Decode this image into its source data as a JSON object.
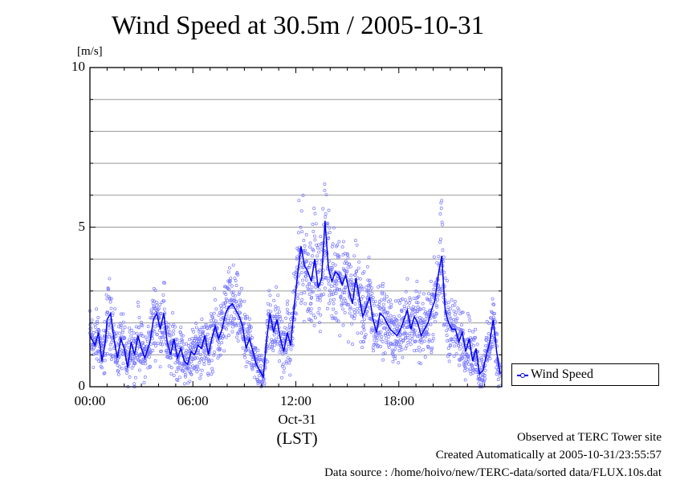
{
  "chart_data": {
    "type": "line",
    "title": "Wind Speed at 30.5m / 2005-10-31",
    "ylabel": "[m/s]",
    "xlabel": "(LST)",
    "date_label": "Oct-31",
    "x_unit": "hour",
    "xlim": [
      0,
      24
    ],
    "ylim": [
      0,
      10
    ],
    "yticks": [
      0,
      5,
      10
    ],
    "ygrid_step": 1,
    "xticks": [
      {
        "value": 0,
        "label": "00:00"
      },
      {
        "value": 6,
        "label": "06:00"
      },
      {
        "value": 12,
        "label": "12:00"
      },
      {
        "value": 18,
        "label": "18:00"
      }
    ],
    "legend": "Wind Speed",
    "legend_position": "right",
    "series": [
      {
        "name": "Wind Speed",
        "color": "#0000ee",
        "x": [
          0.0,
          0.3,
          0.5,
          0.7,
          0.9,
          1.0,
          1.2,
          1.4,
          1.6,
          1.8,
          2.0,
          2.2,
          2.4,
          2.6,
          2.8,
          3.0,
          3.2,
          3.5,
          3.7,
          3.9,
          4.1,
          4.3,
          4.5,
          4.7,
          4.9,
          5.1,
          5.3,
          5.5,
          5.7,
          5.9,
          6.1,
          6.3,
          6.5,
          6.7,
          6.9,
          7.1,
          7.3,
          7.5,
          7.7,
          7.9,
          8.1,
          8.3,
          8.5,
          8.7,
          8.9,
          9.1,
          9.3,
          9.5,
          9.7,
          9.9,
          10.1,
          10.3,
          10.5,
          10.7,
          10.9,
          11.1,
          11.3,
          11.5,
          11.7,
          11.9,
          12.1,
          12.3,
          12.5,
          12.7,
          12.9,
          13.1,
          13.3,
          13.5,
          13.7,
          13.9,
          14.1,
          14.3,
          14.5,
          14.7,
          14.9,
          15.1,
          15.3,
          15.5,
          15.7,
          15.9,
          16.1,
          16.3,
          16.5,
          16.7,
          16.9,
          17.1,
          17.3,
          17.5,
          17.7,
          17.9,
          18.1,
          18.3,
          18.5,
          18.7,
          18.9,
          19.1,
          19.3,
          19.5,
          19.7,
          19.9,
          20.1,
          20.3,
          20.5,
          20.7,
          20.9,
          21.1,
          21.3,
          21.5,
          21.7,
          21.9,
          22.1,
          22.3,
          22.5,
          22.7,
          22.9,
          23.1,
          23.3,
          23.5,
          23.7,
          23.9
        ],
        "values": [
          1.6,
          1.3,
          1.7,
          0.8,
          1.4,
          2.1,
          2.3,
          1.5,
          0.9,
          1.5,
          1.2,
          0.6,
          1.4,
          1.0,
          1.6,
          1.2,
          0.9,
          1.4,
          2.1,
          2.3,
          1.8,
          2.3,
          1.4,
          1.0,
          1.5,
          0.9,
          1.2,
          0.8,
          0.7,
          1.1,
          1.0,
          1.3,
          1.2,
          1.6,
          1.0,
          1.5,
          1.9,
          1.5,
          1.8,
          2.3,
          2.5,
          2.6,
          2.4,
          2.2,
          1.9,
          1.2,
          1.5,
          1.1,
          0.7,
          0.5,
          0.3,
          1.5,
          2.3,
          1.7,
          2.1,
          1.5,
          1.1,
          1.7,
          1.3,
          2.5,
          3.5,
          4.4,
          3.8,
          3.6,
          3.3,
          4.0,
          3.1,
          3.4,
          5.2,
          3.7,
          3.3,
          3.6,
          3.5,
          3.2,
          3.5,
          3.0,
          2.6,
          3.4,
          2.8,
          2.2,
          2.5,
          2.8,
          2.1,
          1.7,
          2.3,
          2.2,
          2.0,
          1.8,
          1.7,
          1.6,
          1.8,
          2.1,
          2.4,
          1.8,
          2.2,
          2.0,
          1.6,
          1.8,
          2.0,
          2.4,
          2.7,
          3.5,
          4.1,
          2.4,
          2.0,
          1.8,
          1.8,
          1.4,
          1.7,
          1.1,
          1.5,
          0.8,
          1.2,
          0.4,
          0.5,
          1.0,
          1.4,
          2.1,
          1.1,
          0.4
        ]
      }
    ]
  },
  "footer": {
    "line1": "Observed at TERC Tower site",
    "line2": "Created Automatically at 2005-10-31/23:55:57",
    "line3": "Data source : /home/hoivo/new/TERC-data/sorted  data/FLUX.10s.dat"
  }
}
